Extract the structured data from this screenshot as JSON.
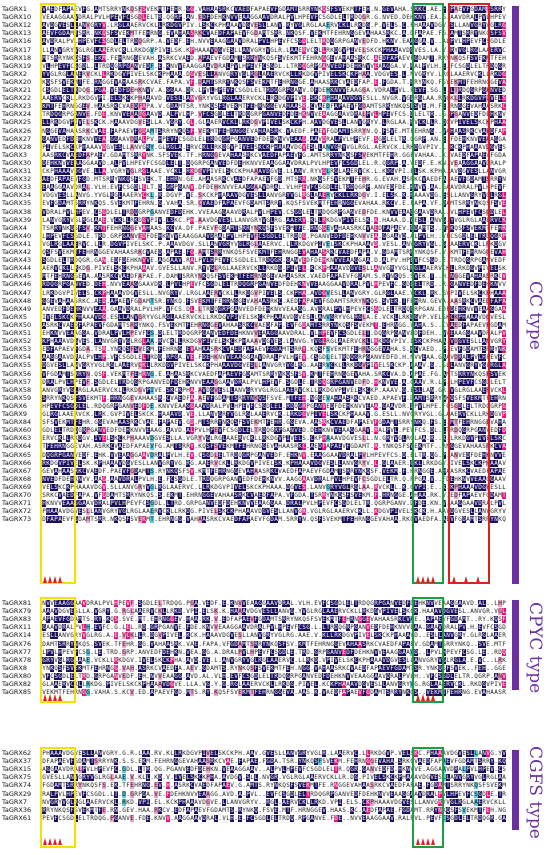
{
  "palette": {
    "navy": "#1a1060",
    "magenta": "#e6157e",
    "pink": "#f3a0c8",
    "cyan": "#5ec8dc",
    "white": "#ffffff",
    "purple_bar": "#6a2fa0",
    "box_yellow": "#f5e000",
    "box_green": "#1aa040",
    "box_red": "#e02020",
    "triangle_red": "#e02020"
  },
  "groups": [
    {
      "label": "CC type",
      "sequences": [
        "TaGRX1",
        "TaGRX10",
        "TaGRX12",
        "TaGRX13",
        "TaGRX16",
        "TaGRX17",
        "TaGRX18",
        "TaGRX19",
        "TaGRX2",
        "TaGRX20",
        "TaGRX21",
        "TaGRX22",
        "TaGRX23",
        "TaGRX24",
        "TaGRX25",
        "TaGRX26",
        "TaGRX27",
        "TaGRX28",
        "TaGRX3",
        "TaGRX30",
        "TaGRX31",
        "TaGRX32",
        "TaGRX33",
        "TaGRX34",
        "TaGRX35",
        "TaGRX38",
        "TaGRX39",
        "TaGRX4",
        "TaGRX40",
        "TaGRX41",
        "TaGRX42",
        "TaGRX43",
        "TaGRX44",
        "TaGRX45",
        "TaGRX46",
        "TaGRX47",
        "TaGRX48",
        "TaGRX49",
        "TaGRX5",
        "TaGRX50",
        "TaGRX51",
        "TaGRX52",
        "TaGRX53",
        "TaGRX54",
        "TaGRX55",
        "TaGRX56",
        "TaGRX57",
        "TaGRX58",
        "TaGRX59",
        "TaGRX6",
        "TaGRX9",
        "TaGRX84",
        "TaGRX60",
        "TaGRX63",
        "TaGRX64",
        "TaGRX65",
        "TaGRX66",
        "TaGRX67",
        "TaGRX68",
        "TaGRX69",
        "TaGRX70",
        "TaGRX71",
        "TaGRX72",
        "TaGRX73"
      ]
    },
    {
      "label": "CPYC type",
      "sequences": [
        "TaGRX81",
        "TaGRX79",
        "TaGRX83",
        "TaGRX11",
        "TaGRX14",
        "TaGRX76",
        "TaGRX77",
        "TaGRX78",
        "TaGRX8",
        "TaGRX80",
        "TaGRX82",
        "TaGRX85"
      ]
    },
    {
      "label": "CGFS type",
      "sequences": [
        "TaGRX62",
        "TaGRX37",
        "TaGRX15",
        "TaGRX75",
        "TaGRX74",
        "TaGRX29",
        "TaGRX7",
        "TaGRX36",
        "TaGRX61"
      ]
    }
  ],
  "sample_residues": "VNPAVHEVADEAFAAAAVPGDAGGEAVVAEFVSGDLDRLAAAMLNTPVSVGRLRRHYYPVNEGKVLQFRSCGFSLSGAVDAELEKERMLVTTCFRKEDLHQLRGRNRKGPDGGGEAVVNPAVIHEVADEAFLSDSREKKHCCKK"
}
